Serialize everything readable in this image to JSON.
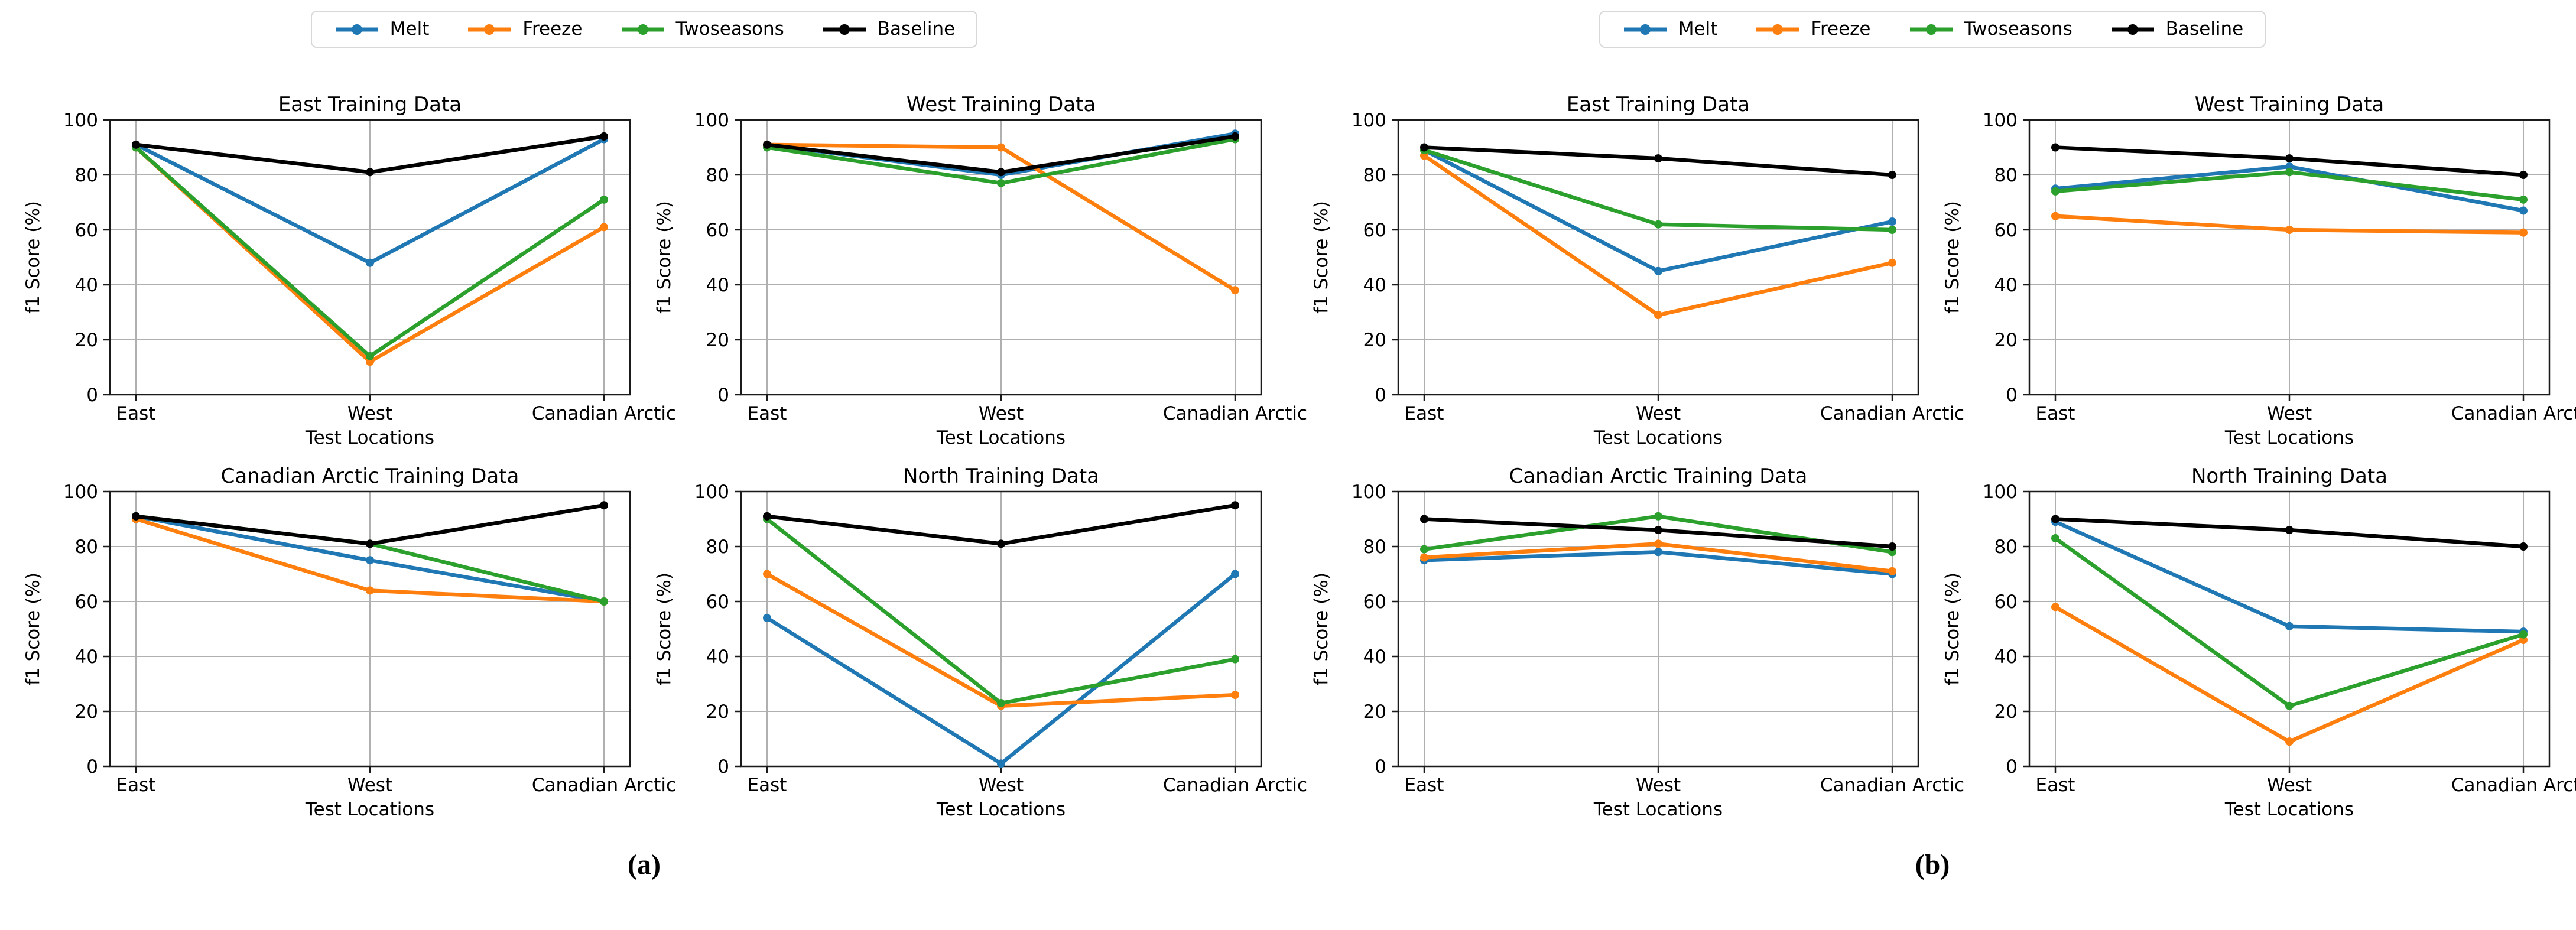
{
  "captions": {
    "a": "(a)",
    "b": "(b)"
  },
  "legend": {
    "position": "top-center",
    "items": [
      {
        "label": "Melt",
        "color": "#1f77b4"
      },
      {
        "label": "Freeze",
        "color": "#ff7f0e"
      },
      {
        "label": "Twoseasons",
        "color": "#2ca02c"
      },
      {
        "label": "Baseline",
        "color": "#000000"
      }
    ]
  },
  "chart_data": [
    {
      "panel": "a",
      "type": "line",
      "title": "East Training Data",
      "xlabel": "Test Locations",
      "ylabel": "f1 Score (%)",
      "categories": [
        "East",
        "West",
        "Canadian Arctic"
      ],
      "ylim": [
        0,
        100
      ],
      "yticks": [
        0,
        20,
        40,
        60,
        80,
        100
      ],
      "grid": true,
      "series": [
        {
          "name": "Melt",
          "values": [
            91,
            48,
            93
          ]
        },
        {
          "name": "Freeze",
          "values": [
            90,
            12,
            61
          ]
        },
        {
          "name": "Twoseasons",
          "values": [
            90,
            14,
            71
          ]
        },
        {
          "name": "Baseline",
          "values": [
            91,
            81,
            94
          ]
        }
      ]
    },
    {
      "panel": "a",
      "type": "line",
      "title": "West Training Data",
      "xlabel": "Test Locations",
      "ylabel": "f1 Score (%)",
      "categories": [
        "East",
        "West",
        "Canadian Arctic"
      ],
      "ylim": [
        0,
        100
      ],
      "yticks": [
        0,
        20,
        40,
        60,
        80,
        100
      ],
      "grid": true,
      "series": [
        {
          "name": "Melt",
          "values": [
            91,
            80,
            95
          ]
        },
        {
          "name": "Freeze",
          "values": [
            91,
            90,
            38
          ]
        },
        {
          "name": "Twoseasons",
          "values": [
            90,
            77,
            93
          ]
        },
        {
          "name": "Baseline",
          "values": [
            91,
            81,
            94
          ]
        }
      ]
    },
    {
      "panel": "a",
      "type": "line",
      "title": "Canadian Arctic Training Data",
      "xlabel": "Test Locations",
      "ylabel": "f1 Score (%)",
      "categories": [
        "East",
        "West",
        "Canadian Arctic"
      ],
      "ylim": [
        0,
        100
      ],
      "yticks": [
        0,
        20,
        40,
        60,
        80,
        100
      ],
      "grid": true,
      "series": [
        {
          "name": "Melt",
          "values": [
            91,
            75,
            60
          ]
        },
        {
          "name": "Freeze",
          "values": [
            90,
            64,
            60
          ]
        },
        {
          "name": "Twoseasons",
          "values": [
            91,
            81,
            60
          ]
        },
        {
          "name": "Baseline",
          "values": [
            91,
            81,
            95
          ]
        }
      ]
    },
    {
      "panel": "a",
      "type": "line",
      "title": "North Training Data",
      "xlabel": "Test Locations",
      "ylabel": "f1 Score (%)",
      "categories": [
        "East",
        "West",
        "Canadian Arctic"
      ],
      "ylim": [
        0,
        100
      ],
      "yticks": [
        0,
        20,
        40,
        60,
        80,
        100
      ],
      "grid": true,
      "series": [
        {
          "name": "Melt",
          "values": [
            54,
            1,
            70
          ]
        },
        {
          "name": "Freeze",
          "values": [
            70,
            22,
            26
          ]
        },
        {
          "name": "Twoseasons",
          "values": [
            90,
            23,
            39
          ]
        },
        {
          "name": "Baseline",
          "values": [
            91,
            81,
            95
          ]
        }
      ]
    },
    {
      "panel": "b",
      "type": "line",
      "title": "East Training Data",
      "xlabel": "Test Locations",
      "ylabel": "f1 Score (%)",
      "categories": [
        "East",
        "West",
        "Canadian Arctic"
      ],
      "ylim": [
        0,
        100
      ],
      "yticks": [
        0,
        20,
        40,
        60,
        80,
        100
      ],
      "grid": true,
      "series": [
        {
          "name": "Melt",
          "values": [
            89,
            45,
            63
          ]
        },
        {
          "name": "Freeze",
          "values": [
            87,
            29,
            48
          ]
        },
        {
          "name": "Twoseasons",
          "values": [
            89,
            62,
            60
          ]
        },
        {
          "name": "Baseline",
          "values": [
            90,
            86,
            80
          ]
        }
      ]
    },
    {
      "panel": "b",
      "type": "line",
      "title": "West Training Data",
      "xlabel": "Test Locations",
      "ylabel": "f1 Score (%)",
      "categories": [
        "East",
        "West",
        "Canadian Arctic"
      ],
      "ylim": [
        0,
        100
      ],
      "yticks": [
        0,
        20,
        40,
        60,
        80,
        100
      ],
      "grid": true,
      "series": [
        {
          "name": "Melt",
          "values": [
            75,
            83,
            67
          ]
        },
        {
          "name": "Freeze",
          "values": [
            65,
            60,
            59
          ]
        },
        {
          "name": "Twoseasons",
          "values": [
            74,
            81,
            71
          ]
        },
        {
          "name": "Baseline",
          "values": [
            90,
            86,
            80
          ]
        }
      ]
    },
    {
      "panel": "b",
      "type": "line",
      "title": "Canadian Arctic Training Data",
      "xlabel": "Test Locations",
      "ylabel": "f1 Score (%)",
      "categories": [
        "East",
        "West",
        "Canadian Arctic"
      ],
      "ylim": [
        0,
        100
      ],
      "yticks": [
        0,
        20,
        40,
        60,
        80,
        100
      ],
      "grid": true,
      "series": [
        {
          "name": "Melt",
          "values": [
            75,
            78,
            70
          ]
        },
        {
          "name": "Freeze",
          "values": [
            76,
            81,
            71
          ]
        },
        {
          "name": "Twoseasons",
          "values": [
            79,
            91,
            78
          ]
        },
        {
          "name": "Baseline",
          "values": [
            90,
            86,
            80
          ]
        }
      ]
    },
    {
      "panel": "b",
      "type": "line",
      "title": "North Training Data",
      "xlabel": "Test Locations",
      "ylabel": "f1 Score (%)",
      "categories": [
        "East",
        "West",
        "Canadian Arctic"
      ],
      "ylim": [
        0,
        100
      ],
      "yticks": [
        0,
        20,
        40,
        60,
        80,
        100
      ],
      "grid": true,
      "series": [
        {
          "name": "Melt",
          "values": [
            89,
            51,
            49
          ]
        },
        {
          "name": "Freeze",
          "values": [
            58,
            9,
            46
          ]
        },
        {
          "name": "Twoseasons",
          "values": [
            83,
            22,
            48
          ]
        },
        {
          "name": "Baseline",
          "values": [
            90,
            86,
            80
          ]
        }
      ]
    }
  ]
}
